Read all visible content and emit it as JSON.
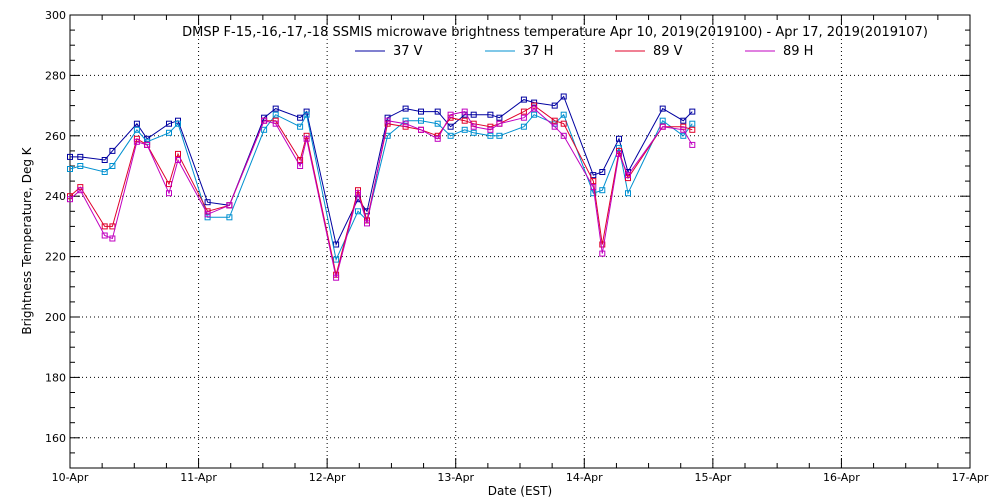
{
  "chart_data": {
    "type": "line",
    "title": "DMSP F-15,-16,-17,-18 SSMIS microwave brightness temperature Apr 10, 2019(2019100) - Apr 17, 2019(2019107)",
    "xlabel": "Date (EST)",
    "ylabel": "Brightness Temperature, Deg K",
    "x_ticks": [
      "10-Apr",
      "11-Apr",
      "12-Apr",
      "13-Apr",
      "14-Apr",
      "15-Apr",
      "16-Apr",
      "17-Apr"
    ],
    "xlim": [
      0,
      7
    ],
    "ylim": [
      150,
      300
    ],
    "y_ticks": [
      160,
      180,
      200,
      220,
      240,
      260,
      280,
      300
    ],
    "grid": true,
    "legend_position": "top-center",
    "series": [
      {
        "name": "37 V",
        "color": "#0000a0",
        "x": [
          0.0,
          0.08,
          0.27,
          0.33,
          0.52,
          0.6,
          0.77,
          0.84,
          1.07,
          1.24,
          1.51,
          1.6,
          1.79,
          1.84,
          2.07,
          2.24,
          2.31,
          2.47,
          2.61,
          2.73,
          2.86,
          2.96,
          3.07,
          3.14,
          3.27,
          3.34,
          3.53,
          3.61,
          3.77,
          3.84,
          4.07,
          4.14,
          4.27,
          4.34,
          4.61,
          4.77,
          4.84
        ],
        "y": [
          253,
          253,
          252,
          255,
          264,
          259,
          264,
          265,
          238,
          237,
          266,
          269,
          266,
          268,
          224,
          239,
          235,
          266,
          269,
          268,
          268,
          263,
          267,
          267,
          267,
          266,
          272,
          271,
          270,
          273,
          247,
          248,
          259,
          248,
          269,
          265,
          268
        ]
      },
      {
        "name": "37 H",
        "color": "#0090d0",
        "x": [
          0.0,
          0.08,
          0.27,
          0.33,
          0.52,
          0.6,
          0.77,
          0.84,
          1.07,
          1.24,
          1.51,
          1.6,
          1.79,
          1.84,
          2.07,
          2.24,
          2.31,
          2.47,
          2.61,
          2.73,
          2.86,
          2.96,
          3.07,
          3.14,
          3.27,
          3.34,
          3.53,
          3.61,
          3.77,
          3.84,
          4.07,
          4.14,
          4.27,
          4.34,
          4.61,
          4.77,
          4.84
        ],
        "y": [
          249,
          250,
          248,
          250,
          262,
          258,
          261,
          264,
          233,
          233,
          262,
          267,
          263,
          267,
          219,
          235,
          232,
          260,
          265,
          265,
          264,
          260,
          262,
          261,
          260,
          260,
          263,
          267,
          264,
          267,
          241,
          242,
          256,
          241,
          265,
          260,
          264
        ]
      },
      {
        "name": "89 V",
        "color": "#e0002a",
        "x": [
          0.0,
          0.08,
          0.27,
          0.33,
          0.52,
          0.6,
          0.77,
          0.84,
          1.07,
          1.24,
          1.51,
          1.6,
          1.79,
          1.84,
          2.07,
          2.24,
          2.31,
          2.47,
          2.61,
          2.73,
          2.86,
          2.96,
          3.07,
          3.14,
          3.27,
          3.34,
          3.53,
          3.61,
          3.77,
          3.84,
          4.07,
          4.14,
          4.27,
          4.34,
          4.61,
          4.77,
          4.84
        ],
        "y": [
          240,
          243,
          230,
          230,
          259,
          257,
          244,
          254,
          235,
          237,
          265,
          265,
          252,
          260,
          214,
          242,
          232,
          264,
          263,
          262,
          260,
          266,
          265,
          264,
          263,
          264,
          268,
          270,
          265,
          264,
          245,
          224,
          255,
          246,
          263,
          263,
          262
        ]
      },
      {
        "name": "89 H",
        "color": "#c000c0",
        "x": [
          0.0,
          0.08,
          0.27,
          0.33,
          0.52,
          0.6,
          0.77,
          0.84,
          1.07,
          1.24,
          1.51,
          1.6,
          1.79,
          1.84,
          2.07,
          2.24,
          2.31,
          2.47,
          2.61,
          2.73,
          2.86,
          2.96,
          3.07,
          3.14,
          3.27,
          3.34,
          3.53,
          3.61,
          3.77,
          3.84,
          4.07,
          4.14,
          4.27,
          4.34,
          4.61,
          4.77,
          4.84
        ],
        "y": [
          239,
          242,
          227,
          226,
          258,
          257,
          241,
          252,
          234,
          237,
          265,
          264,
          250,
          259,
          213,
          241,
          231,
          265,
          264,
          262,
          259,
          267,
          268,
          263,
          262,
          264,
          266,
          269,
          263,
          260,
          243,
          221,
          254,
          247,
          263,
          262,
          257
        ]
      }
    ]
  }
}
